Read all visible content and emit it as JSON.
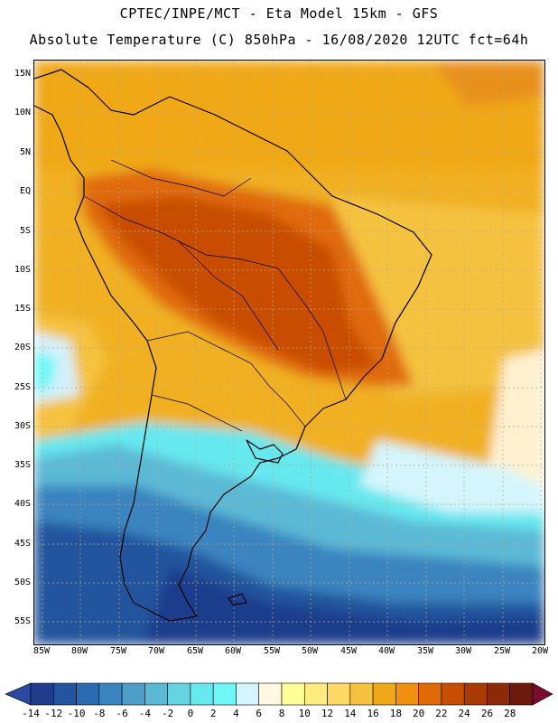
{
  "header": {
    "line1": "CPTEC/INPE/MCT -  Eta Model 15km - GFS",
    "line2": "Absolute Temperature (C) 850hPa - 16/08/2020 12UTC fct=64h"
  },
  "map": {
    "lat_labels": [
      "15N",
      "10N",
      "5N",
      "EQ",
      "5S",
      "10S",
      "15S",
      "20S",
      "25S",
      "30S",
      "35S",
      "40S",
      "45S",
      "50S",
      "55S"
    ],
    "lon_labels": [
      "85W",
      "80W",
      "75W",
      "70W",
      "65W",
      "60W",
      "55W",
      "50W",
      "45W",
      "40W",
      "35W",
      "30W",
      "25W",
      "20W"
    ]
  },
  "colorbar": {
    "labels": [
      "-14",
      "-12",
      "-10",
      "-8",
      "-6",
      "-4",
      "-2",
      "0",
      "2",
      "4",
      "6",
      "8",
      "10",
      "12",
      "14",
      "16",
      "18",
      "20",
      "22",
      "24",
      "26",
      "28"
    ],
    "colors": [
      "#1f3d8c",
      "#24549d",
      "#2d6bb0",
      "#3a84c0",
      "#4d9ec9",
      "#5cb9d6",
      "#66d3e3",
      "#66e8ef",
      "#6ff7f7",
      "#d4f5fb",
      "#fff7e2",
      "#ffff99",
      "#ffec80",
      "#ffd966",
      "#f5c23f",
      "#f0a818",
      "#f09010",
      "#e06a08",
      "#c84e04",
      "#a83a04",
      "#8c2a08",
      "#6c1a0c"
    ],
    "under_color": "#2a48a0",
    "over_color": "#7a0d2e"
  }
}
